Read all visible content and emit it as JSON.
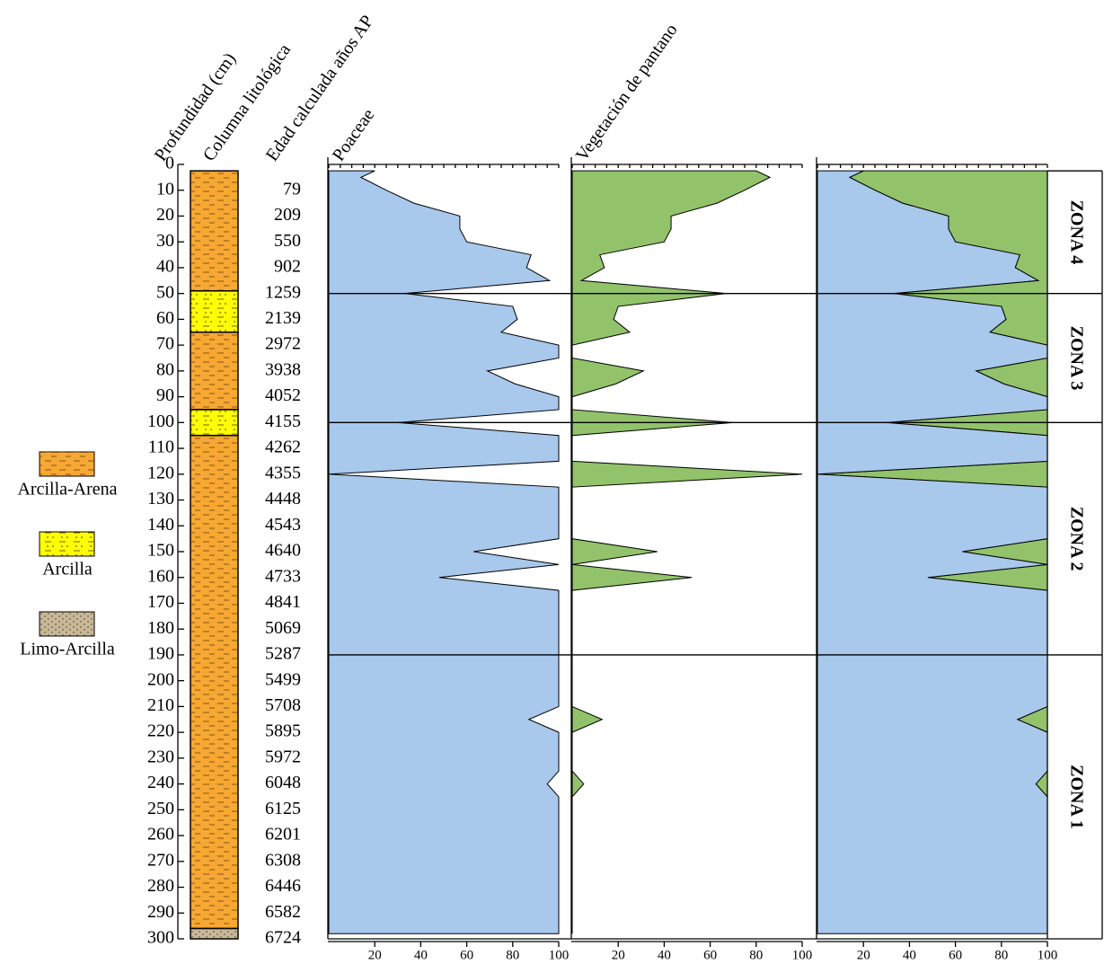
{
  "headers": {
    "depth": "Profundidad (cm)",
    "lithology": "Columna litológica",
    "age": "Edad calculada años AP"
  },
  "depth_axis": {
    "ylim": [
      0,
      300
    ],
    "yticks": [
      0,
      10,
      20,
      30,
      40,
      50,
      60,
      70,
      80,
      90,
      100,
      110,
      120,
      130,
      140,
      150,
      160,
      170,
      180,
      190,
      200,
      210,
      220,
      230,
      240,
      250,
      260,
      270,
      280,
      290,
      300
    ]
  },
  "ages": {
    "depths": [
      10,
      20,
      30,
      40,
      50,
      60,
      70,
      80,
      90,
      100,
      110,
      120,
      130,
      140,
      150,
      160,
      170,
      180,
      190,
      200,
      210,
      220,
      230,
      240,
      250,
      260,
      270,
      280,
      290,
      300
    ],
    "labels": [
      79,
      209,
      550,
      902,
      1259,
      2139,
      2972,
      3938,
      4052,
      4155,
      4262,
      4355,
      4448,
      4543,
      4640,
      4733,
      4841,
      5069,
      5287,
      5499,
      5708,
      5895,
      5972,
      6048,
      6125,
      6201,
      6308,
      6446,
      6582,
      6724
    ]
  },
  "lithology": {
    "legend": [
      "Arcilla-Arena",
      "Arcilla",
      "Limo-Arcilla"
    ],
    "colors": [
      "#f7a833",
      "#ffff00",
      "#c9b896"
    ],
    "layers": [
      {
        "type": 0,
        "from": 2.5,
        "to": 49
      },
      {
        "type": 1,
        "from": 49,
        "to": 65
      },
      {
        "type": 0,
        "from": 65,
        "to": 95
      },
      {
        "type": 1,
        "from": 95,
        "to": 105
      },
      {
        "type": 0,
        "from": 105,
        "to": 296
      },
      {
        "type": 2,
        "from": 296,
        "to": 300
      }
    ]
  },
  "zones": [
    {
      "label": "ZONA 4",
      "from": 2.5,
      "to": 50
    },
    {
      "label": "ZONA 3",
      "from": 50,
      "to": 100
    },
    {
      "label": "ZONA 2",
      "from": 100,
      "to": 190
    },
    {
      "label": "ZONA 1",
      "from": 190,
      "to": 300
    }
  ],
  "chart_data": [
    {
      "type": "area",
      "title": "Poaceae",
      "color": "#a8c8ec",
      "xlim": [
        0,
        100
      ],
      "xticks": [
        20,
        40,
        60,
        80,
        100
      ],
      "depths": [
        2.5,
        5,
        10,
        15,
        20,
        25,
        30,
        35,
        40,
        45,
        50,
        55,
        60,
        65,
        70,
        75,
        80,
        85,
        90,
        95,
        100,
        105,
        115,
        120,
        125,
        145,
        150,
        155,
        160,
        165,
        210,
        215,
        220,
        235,
        240,
        245,
        298
      ],
      "values": [
        20,
        14,
        25,
        37,
        57,
        57,
        60,
        88,
        86,
        96,
        33,
        80,
        82,
        75,
        100,
        100,
        69,
        81,
        100,
        100,
        30,
        100,
        100,
        0,
        100,
        100,
        63,
        100,
        48,
        100,
        100,
        87,
        100,
        100,
        95,
        100,
        100
      ]
    },
    {
      "type": "area",
      "title": "Vegetación de pantano",
      "color": "#92c36b",
      "xlim": [
        0,
        100
      ],
      "xticks": [
        20,
        40,
        60,
        80,
        100
      ],
      "depths": [
        2.5,
        5,
        10,
        15,
        20,
        25,
        30,
        35,
        40,
        45,
        50,
        55,
        60,
        65,
        70,
        75,
        80,
        85,
        90,
        95,
        100,
        105,
        115,
        120,
        125,
        145,
        150,
        155,
        160,
        165,
        210,
        215,
        220,
        235,
        240,
        245,
        298
      ],
      "values": [
        80,
        86,
        75,
        63,
        43,
        43,
        40,
        12,
        14,
        4,
        67,
        20,
        18,
        25,
        0,
        0,
        31,
        19,
        0,
        0,
        70,
        0,
        0,
        100,
        0,
        0,
        37,
        0,
        52,
        0,
        0,
        13,
        0,
        0,
        5,
        0,
        0
      ]
    },
    {
      "type": "stacked-area",
      "xlim": [
        0,
        100
      ],
      "xticks": [
        20,
        40,
        60,
        80,
        100
      ],
      "depths": [
        2.5,
        5,
        10,
        15,
        20,
        25,
        30,
        35,
        40,
        45,
        50,
        55,
        60,
        65,
        70,
        75,
        80,
        85,
        90,
        95,
        100,
        105,
        115,
        120,
        125,
        145,
        150,
        155,
        160,
        165,
        210,
        215,
        220,
        235,
        240,
        245,
        298
      ],
      "series": [
        {
          "color": "#a8c8ec",
          "values": [
            20,
            14,
            25,
            37,
            57,
            57,
            60,
            88,
            86,
            96,
            33,
            80,
            82,
            75,
            100,
            100,
            69,
            81,
            100,
            100,
            30,
            100,
            100,
            0,
            100,
            100,
            63,
            100,
            48,
            100,
            100,
            87,
            100,
            100,
            95,
            100,
            100
          ]
        },
        {
          "color": "#92c36b",
          "values": [
            80,
            86,
            75,
            63,
            43,
            43,
            40,
            12,
            14,
            4,
            67,
            20,
            18,
            25,
            0,
            0,
            31,
            19,
            0,
            0,
            70,
            0,
            0,
            100,
            0,
            0,
            37,
            0,
            52,
            0,
            0,
            13,
            0,
            0,
            5,
            0,
            0
          ]
        }
      ]
    }
  ]
}
